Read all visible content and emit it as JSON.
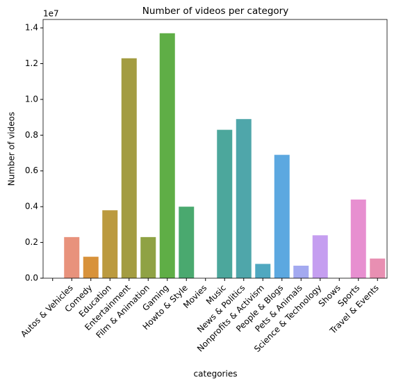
{
  "chart_data": {
    "type": "bar",
    "title": "Number of videos per category",
    "x_label": "categories",
    "y_label": "Number of videos",
    "y_offset_label": "1e7",
    "categories": [
      null,
      "Autos & Vehicles",
      "Comedy",
      "Education",
      "Entertainment",
      "Film & Animation",
      "Gaming",
      "Howto & Style",
      "Movies",
      "Music",
      "News & Politics",
      "Nonprofits & Activism",
      "People & Blogs",
      "Pets & Animals",
      "Science & Technology",
      "Shows",
      "Sports",
      "Travel & Events"
    ],
    "values": [
      0,
      0.23,
      0.12,
      0.38,
      1.23,
      0.23,
      1.37,
      0.4,
      0,
      0.83,
      0.89,
      0.08,
      0.69,
      0.07,
      0.24,
      0,
      0.44,
      0.11
    ],
    "colors": [
      "#f77189",
      "#e8927c",
      "#d8923a",
      "#bb9a3f",
      "#a39c41",
      "#8fa244",
      "#5fae46",
      "#4aa96f",
      "#4aa78c",
      "#4ca79c",
      "#4fa6aa",
      "#4fa8c0",
      "#5ca8e0",
      "#a3a9f0",
      "#c59ef0",
      "#df8fe6",
      "#e78fd0",
      "#e88fb2"
    ],
    "ylim": [
      0,
      1.447
    ],
    "yticks": [
      {
        "value": 0,
        "label": "0.0"
      },
      0.2,
      0.4,
      0.6,
      0.8,
      {
        "value": 1,
        "label": "1.0"
      },
      1.2,
      1.4
    ]
  }
}
